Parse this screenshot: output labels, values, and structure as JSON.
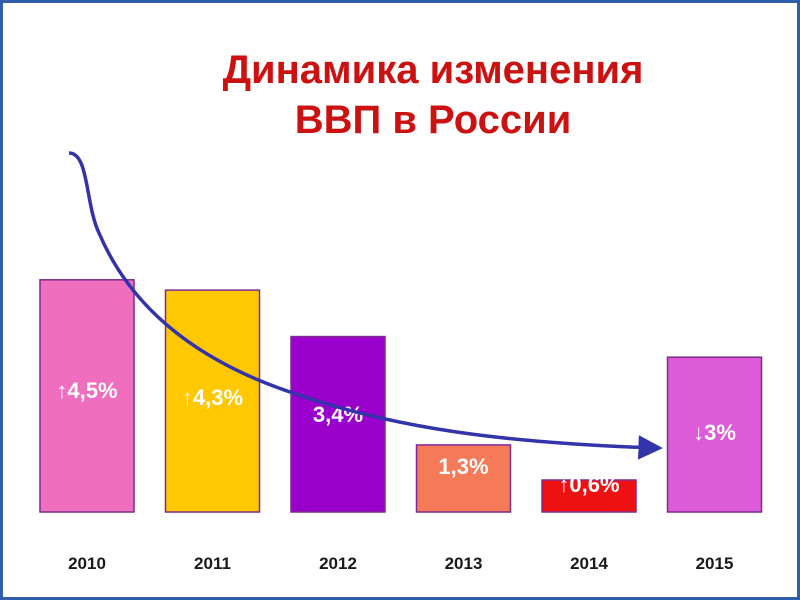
{
  "title": {
    "line1": "Динамика изменения",
    "line2": "ВВП в России"
  },
  "chart_data": {
    "type": "bar",
    "title": "Динамика изменения ВВП в России",
    "categories": [
      "2010",
      "2011",
      "2012",
      "2013",
      "2014",
      "2015"
    ],
    "values": [
      4.5,
      4.3,
      3.4,
      1.3,
      0.6,
      -3
    ],
    "labels": [
      "↑4,5%",
      "↑4,3%",
      "3,4%",
      "1,3%",
      "↑0,6%",
      "↓3%"
    ],
    "colors": [
      "#ef6fbe",
      "#ffc800",
      "#9900cc",
      "#f47a5a",
      "#ee1111",
      "#dd5bd8"
    ],
    "label_colors": [
      "#ffffff",
      "#ffffff",
      "#ffffff",
      "#ffffff",
      "#ffffff",
      "#ffffff"
    ],
    "bar_border_color": "#7f2a8f",
    "axis_label_color": "#1a1a1a",
    "trend_arrow": {
      "color": "#3333aa",
      "direction": "decreasing"
    },
    "grid": false,
    "legend": "none"
  }
}
